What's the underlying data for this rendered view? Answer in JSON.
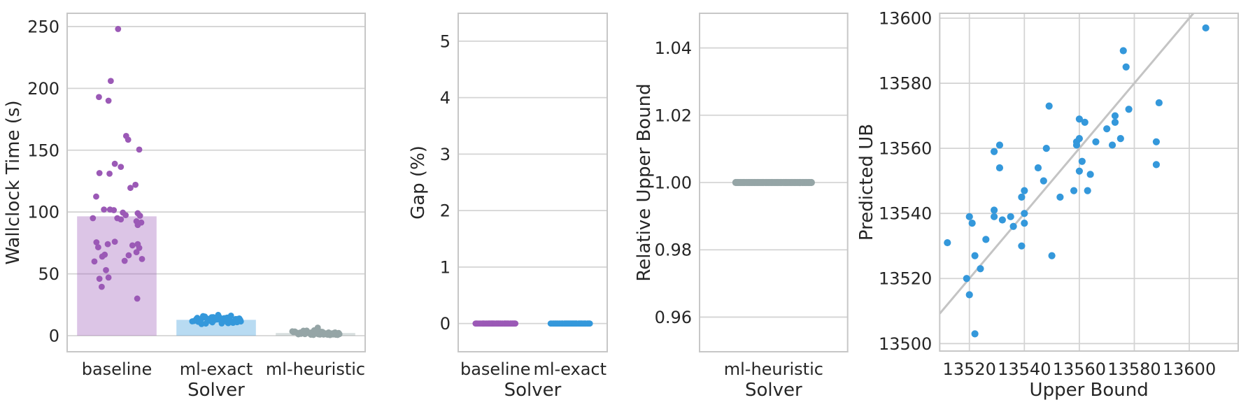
{
  "style": {
    "background": "#ffffff",
    "grid_color": "#d4d4d4",
    "spine_color": "#c7c7c7",
    "text_color": "#262626",
    "diagonal_color": "#c4c4c4",
    "bar_alpha": 0.35
  },
  "chart_data": [
    {
      "id": "wallclock",
      "type": "bar+strip",
      "title": "",
      "xlabel": "Solver",
      "ylabel": "Wallclock Time (s)",
      "categories": [
        "baseline",
        "ml-exact",
        "ml-heuristic"
      ],
      "colors": [
        "#9b59b6",
        "#3498db",
        "#95a5a6"
      ],
      "bar_values": [
        96.5,
        12.8,
        2.2
      ],
      "yticks": [
        "0",
        "50",
        "100",
        "150",
        "200",
        "250"
      ],
      "ytick_values": [
        0,
        50,
        100,
        150,
        200,
        250
      ],
      "ylim": [
        -13,
        260.7
      ],
      "grid": "horizontal",
      "series": [
        {
          "name": "baseline",
          "values": [
            248,
            206,
            193,
            190,
            161.5,
            158.5,
            150.5,
            139,
            136.5,
            131.5,
            131,
            122,
            119.5,
            112.5,
            102,
            102,
            101.5,
            99.5,
            99,
            97.5,
            97,
            95,
            95,
            94,
            92.5,
            91.5,
            89.5,
            75.5,
            76,
            74,
            74,
            73,
            71.5,
            71,
            67.5,
            65.5,
            65,
            64,
            62,
            60.5,
            60,
            53,
            47,
            46,
            39.5,
            30
          ],
          "jitter": [
            0.05,
            -0.24,
            -0.71,
            -0.33,
            0.37,
            0.45,
            0.89,
            -0.08,
            0.16,
            -0.69,
            -0.29,
            0.74,
            0.54,
            -0.82,
            -0.51,
            -0.27,
            -0.12,
            0.24,
            0.83,
            0.35,
            0.92,
            -0.95,
            0.02,
            0.16,
            0.78,
            0.97,
            0.83,
            -0.81,
            -0.08,
            -0.36,
            0.83,
            0.62,
            -0.74,
            0.89,
            0.78,
            -0.48,
            0.47,
            -0.58,
            1.0,
            0.31,
            -0.89,
            -0.43,
            -0.33,
            -0.69,
            -0.6,
            0.81
          ]
        },
        {
          "name": "ml-exact",
          "values": [
            12.3,
            14.1,
            10.8,
            13.5,
            11.9,
            15.2,
            12.7,
            9.8,
            13.9,
            12.1,
            14.6,
            11.2,
            13.2,
            10.4,
            15.8,
            12.9,
            11.6,
            14.3,
            13.7,
            10.9,
            12.4,
            16.2,
            11.4,
            13.1,
            12.6,
            14.9,
            10.1,
            13.4,
            12.0,
            15.5,
            11.8,
            12.8,
            14.0,
            9.4,
            13.6,
            12.2,
            16.8,
            11.1,
            14.4,
            12.5,
            10.6,
            13.8,
            11.5,
            15.0,
            12.3,
            13.0,
            9.9,
            14.7,
            11.7,
            13.3
          ],
          "jitter": [
            -0.62,
            0.31,
            -0.15,
            0.78,
            -0.88,
            0.12,
            0.55,
            -0.41,
            0.92,
            -0.23,
            0.44,
            -0.71,
            0.05,
            0.67,
            -0.52,
            0.25,
            -0.95,
            0.38,
            -0.08,
            0.83,
            -0.33,
            0.59,
            -0.64,
            0.15,
            0.96,
            -0.18,
            0.48,
            -0.79,
            0.28,
            -0.45,
            0.72,
            -0.05,
            0.35,
            -0.58,
            0.88,
            -0.28,
            0.08,
            0.62,
            -0.75,
            0.18,
            0.45,
            -0.35,
            0.98,
            -0.12,
            0.52,
            -0.68,
            0.22,
            -0.48,
            0.75,
            -0.02
          ]
        },
        {
          "name": "ml-heuristic",
          "values": [
            1.2,
            2.8,
            0.9,
            3.4,
            1.8,
            2.2,
            0.6,
            4.1,
            1.5,
            2.6,
            1.1,
            3.0,
            0.8,
            2.4,
            1.9,
            3.7,
            1.3,
            2.1,
            0.5,
            2.9,
            1.6,
            4.4,
            1.0,
            2.5,
            1.4,
            3.2,
            0.7,
            2.0,
            6.5,
            1.7,
            2.7,
            1.2,
            3.5,
            0.9,
            2.3,
            1.8,
            4.0,
            1.1,
            2.6,
            1.5,
            3.1,
            0.6,
            2.2,
            1.3,
            3.8,
            0.8,
            2.8,
            1.9,
            2.4,
            1.0
          ],
          "jitter": [
            0.41,
            -0.55,
            0.18,
            -0.82,
            0.65,
            -0.12,
            0.88,
            -0.35,
            0.08,
            0.52,
            -0.68,
            0.28,
            -0.18,
            0.75,
            -0.45,
            0.15,
            0.95,
            -0.25,
            0.58,
            -0.88,
            0.35,
            -0.05,
            0.68,
            -0.62,
            0.22,
            -0.38,
            0.82,
            0.02,
            0.09,
            0.45,
            -0.15,
            0.62,
            -0.92,
            0.32,
            -0.28,
            0.55,
            -0.48,
            0.12,
            0.78,
            -0.58,
            0.25,
            -0.08,
            0.92,
            -0.42,
            0.05,
            0.48,
            -0.78,
            0.38,
            -0.22,
            0.72
          ]
        }
      ]
    },
    {
      "id": "gap",
      "type": "strip",
      "title": "",
      "xlabel": "Solver",
      "ylabel": "Gap (%)",
      "categories": [
        "baseline",
        "ml-exact"
      ],
      "colors": [
        "#9b59b6",
        "#3498db"
      ],
      "yticks": [
        "0",
        "1",
        "2",
        "3",
        "4",
        "5"
      ],
      "ytick_values": [
        0,
        1,
        2,
        3,
        4,
        5
      ],
      "ylim": [
        -0.5,
        5.494
      ],
      "grid": "horizontal",
      "series": [
        {
          "name": "baseline",
          "values": [
            0,
            0,
            0,
            0,
            0,
            0,
            0,
            0,
            0,
            0,
            0,
            0,
            0,
            0,
            0,
            0,
            0,
            0,
            0,
            0,
            0,
            0,
            0,
            0,
            0,
            0,
            0,
            0,
            0,
            0,
            0,
            0,
            0,
            0,
            0,
            0,
            0,
            0,
            0,
            0,
            0,
            0,
            0,
            0,
            0,
            0,
            0,
            0,
            0,
            0
          ],
          "jitter": [
            -0.85,
            0.42,
            -0.31,
            0.77,
            -0.12,
            0.95,
            -0.58,
            0.23,
            -0.94,
            0.51,
            0.08,
            -0.44,
            0.88,
            -0.21,
            0.65,
            -0.72,
            0.31,
            -0.05,
            0.98,
            -0.38,
            0.15,
            0.72,
            -0.62,
            0.45,
            -0.15,
            0.85,
            -0.91,
            0.05,
            0.58,
            -0.48,
            0.25,
            -0.78,
            0.92,
            -0.28,
            0.62,
            0.35,
            -0.55,
            0.12,
            -0.98,
            0.48,
            -0.08,
            0.75,
            -0.35,
            0.18,
            -0.65,
            0.82,
            -0.18,
            0.55,
            -0.25,
            0.02
          ]
        },
        {
          "name": "ml-exact",
          "values": [
            0,
            0,
            0,
            0,
            0,
            0,
            0,
            0,
            0,
            0,
            0,
            0,
            0,
            0,
            0,
            0,
            0,
            0,
            0,
            0,
            0,
            0,
            0,
            0,
            0,
            0,
            0,
            0,
            0,
            0,
            0,
            0,
            0,
            0,
            0,
            0,
            0,
            0,
            0,
            0,
            0,
            0,
            0,
            0,
            0,
            0,
            0,
            0,
            0,
            0
          ],
          "jitter": [
            0.33,
            -0.67,
            0.15,
            0.88,
            -0.25,
            -0.95,
            0.52,
            -0.08,
            0.71,
            -0.42,
            0.95,
            0.05,
            -0.58,
            0.28,
            -0.81,
            0.62,
            -0.18,
            0.41,
            -0.92,
            0.12,
            0.78,
            -0.35,
            0.58,
            -0.12,
            -0.72,
            0.22,
            0.98,
            -0.48,
            0.08,
            0.68,
            -0.28,
            0.45,
            -0.85,
            0.18,
            -0.02,
            0.85,
            -0.52,
            0.32,
            -0.15,
            0.92,
            -0.62,
            0.02,
            0.48,
            -0.38,
            0.75,
            -0.22,
            0.55,
            -0.75,
            0.25,
            -0.05
          ]
        }
      ]
    },
    {
      "id": "relative-upper-bound",
      "type": "strip",
      "title": "",
      "xlabel": "Solver",
      "ylabel": "Relative Upper Bound",
      "categories": [
        "ml-heuristic"
      ],
      "colors": [
        "#95a5a6"
      ],
      "yticks": [
        "0.96",
        "0.98",
        "1.00",
        "1.02",
        "1.04"
      ],
      "ytick_values": [
        0.96,
        0.98,
        1.0,
        1.02,
        1.04
      ],
      "ylim": [
        0.9497,
        1.0503
      ],
      "grid": "horizontal",
      "series": [
        {
          "name": "ml-heuristic",
          "values": [
            1.0,
            1.0,
            1.0,
            1.0,
            1.0,
            1.0,
            1.0,
            1.0,
            1.0,
            1.0,
            1.0,
            1.0,
            1.0,
            1.0,
            1.0,
            1.0,
            1.0,
            1.0,
            1.0,
            1.0,
            1.0,
            1.0,
            1.0,
            1.0,
            1.0,
            1.0,
            1.0,
            1.0,
            1.0,
            1.0,
            1.0,
            1.0,
            1.0,
            1.0,
            1.0,
            1.0,
            1.0,
            1.0,
            1.0,
            1.0,
            1.0,
            1.0,
            1.0,
            1.0,
            1.0,
            1.0,
            1.0,
            1.0,
            1.0,
            1.0
          ],
          "jitter": [
            -1.0,
            -0.96,
            -0.92,
            -0.88,
            -0.84,
            -0.8,
            -0.76,
            -0.71,
            -0.67,
            -0.63,
            -0.59,
            -0.55,
            -0.51,
            -0.47,
            -0.43,
            -0.39,
            -0.35,
            -0.31,
            -0.27,
            -0.22,
            -0.18,
            -0.14,
            -0.1,
            -0.06,
            -0.02,
            0.02,
            0.06,
            0.1,
            0.14,
            0.18,
            0.22,
            0.27,
            0.31,
            0.35,
            0.39,
            0.43,
            0.47,
            0.51,
            0.55,
            0.59,
            0.63,
            0.67,
            0.71,
            0.76,
            0.8,
            0.84,
            0.88,
            0.92,
            0.96,
            1.0
          ]
        }
      ]
    },
    {
      "id": "predicted-vs-upper-bound",
      "type": "scatter",
      "title": "",
      "xlabel": "Upper Bound",
      "ylabel": "Predicted UB",
      "color": "#3498db",
      "xticks": [
        "13520",
        "13540",
        "13560",
        "13580",
        "13600"
      ],
      "xtick_values": [
        13520,
        13540,
        13560,
        13580,
        13600
      ],
      "yticks": [
        "13500",
        "13520",
        "13540",
        "13560",
        "13580",
        "13600"
      ],
      "ytick_values": [
        13500,
        13520,
        13540,
        13560,
        13580,
        13600
      ],
      "xlim": [
        13509.2,
        13617.8
      ],
      "ylim": [
        13497.7,
        13601.5
      ],
      "grid": "both",
      "diagonal": true,
      "points": [
        [
          13512,
          13531
        ],
        [
          13519,
          13520
        ],
        [
          13520,
          13539
        ],
        [
          13520,
          13515
        ],
        [
          13522,
          13503
        ],
        [
          13521,
          13537
        ],
        [
          13522,
          13527
        ],
        [
          13524,
          13523
        ],
        [
          13526,
          13532
        ],
        [
          13529,
          13559
        ],
        [
          13529,
          13541
        ],
        [
          13529,
          13539
        ],
        [
          13531,
          13561
        ],
        [
          13531,
          13554
        ],
        [
          13532,
          13538
        ],
        [
          13535,
          13539
        ],
        [
          13536,
          13536
        ],
        [
          13539,
          13545
        ],
        [
          13540,
          13547
        ],
        [
          13539,
          13530
        ],
        [
          13540,
          13537
        ],
        [
          13540,
          13540
        ],
        [
          13545,
          13554
        ],
        [
          13547,
          13550
        ],
        [
          13548,
          13560
        ],
        [
          13549,
          13573
        ],
        [
          13550,
          13527
        ],
        [
          13553,
          13545
        ],
        [
          13558,
          13547
        ],
        [
          13559,
          13562
        ],
        [
          13559,
          13561
        ],
        [
          13560,
          13569
        ],
        [
          13560,
          13563
        ],
        [
          13560,
          13553
        ],
        [
          13561,
          13556
        ],
        [
          13562,
          13568
        ],
        [
          13563,
          13547
        ],
        [
          13564,
          13552
        ],
        [
          13566,
          13562
        ],
        [
          13570,
          13566
        ],
        [
          13572,
          13561
        ],
        [
          13573,
          13570
        ],
        [
          13573,
          13568
        ],
        [
          13575,
          13563
        ],
        [
          13576,
          13590
        ],
        [
          13577,
          13585
        ],
        [
          13578,
          13572
        ],
        [
          13588,
          13562
        ],
        [
          13589,
          13574
        ],
        [
          13588,
          13555
        ],
        [
          13606,
          13597
        ]
      ]
    }
  ]
}
